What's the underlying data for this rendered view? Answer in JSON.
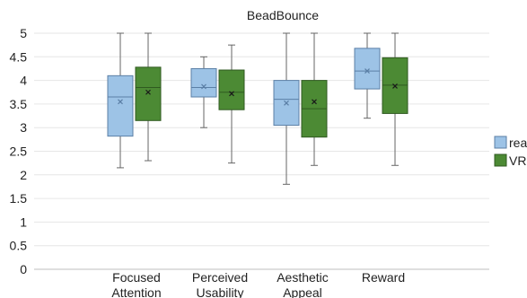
{
  "chart_data": {
    "type": "boxplot",
    "title": "BeadBounce",
    "xlabel": "",
    "ylabel": "",
    "ylim": [
      0,
      5
    ],
    "yticks": [
      "0",
      "0.5",
      "1",
      "1.5",
      "2",
      "2.5",
      "3",
      "3.5",
      "4",
      "4.5",
      "5"
    ],
    "grid": true,
    "legend_position": "right",
    "categories": [
      [
        "Focused",
        "Attention"
      ],
      [
        "Perceived",
        "Usability"
      ],
      [
        "Aesthetic",
        "Appeal"
      ],
      [
        "Reward"
      ]
    ],
    "series": [
      {
        "name": "real",
        "color": "#9dc3e6",
        "stroke": "#5b7fa6",
        "boxes": [
          {
            "min": 2.15,
            "q1": 2.82,
            "median": 3.65,
            "q3": 4.1,
            "max": 5.0,
            "mean": 3.55
          },
          {
            "min": 3.0,
            "q1": 3.65,
            "median": 3.85,
            "q3": 4.25,
            "max": 4.5,
            "mean": 3.87
          },
          {
            "min": 1.8,
            "q1": 3.05,
            "median": 3.6,
            "q3": 4.0,
            "max": 5.0,
            "mean": 3.52
          },
          {
            "min": 3.2,
            "q1": 3.82,
            "median": 4.2,
            "q3": 4.68,
            "max": 5.0,
            "mean": 4.2
          }
        ]
      },
      {
        "name": "VR",
        "color": "#4c8a34",
        "stroke": "#2f5a20",
        "boxes": [
          {
            "min": 2.3,
            "q1": 3.15,
            "median": 3.85,
            "q3": 4.28,
            "max": 5.0,
            "mean": 3.75
          },
          {
            "min": 2.25,
            "q1": 3.38,
            "median": 3.75,
            "q3": 4.22,
            "max": 4.75,
            "mean": 3.72
          },
          {
            "min": 2.2,
            "q1": 2.8,
            "median": 3.4,
            "q3": 4.0,
            "max": 5.0,
            "mean": 3.55
          },
          {
            "min": 2.2,
            "q1": 3.3,
            "median": 3.9,
            "q3": 4.48,
            "max": 5.0,
            "mean": 3.88
          }
        ]
      }
    ]
  }
}
